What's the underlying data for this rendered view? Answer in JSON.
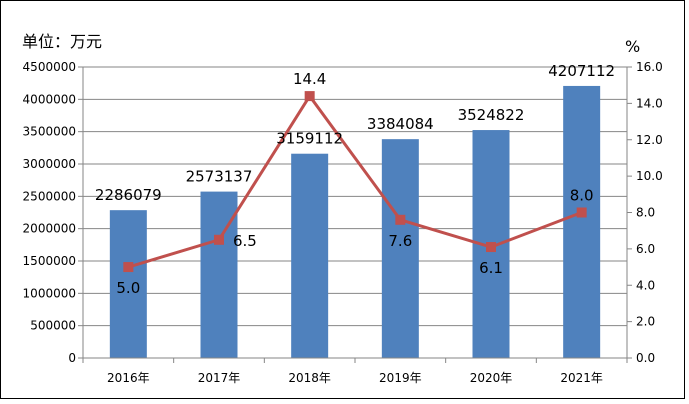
{
  "chart_data": {
    "type": "bar",
    "categories": [
      "2016年",
      "2017年",
      "2018年",
      "2019年",
      "2020年",
      "2021年"
    ],
    "series": [
      {
        "kind": "bar",
        "axis": "left",
        "values": [
          2286079,
          2573137,
          3159112,
          3384084,
          3524822,
          4207112
        ],
        "color": "#4F81BD"
      },
      {
        "kind": "line",
        "axis": "right",
        "values": [
          5.0,
          6.5,
          14.4,
          7.6,
          6.1,
          8.0
        ],
        "color": "#C0504D"
      }
    ],
    "bar_labels": [
      "2286079",
      "2573137",
      "3159112",
      "3384084",
      "3524822",
      "4207112"
    ],
    "line_labels": [
      "5.0",
      "6.5",
      "14.4",
      "7.6",
      "6.1",
      "8.0"
    ],
    "y_left": {
      "unit": "单位：万元",
      "ylim": [
        0,
        4500000
      ],
      "ticks": [
        0,
        500000,
        1000000,
        1500000,
        2000000,
        2500000,
        3000000,
        3500000,
        4000000,
        4500000
      ],
      "tick_labels": [
        "0",
        "500000",
        "1000000",
        "1500000",
        "2000000",
        "2500000",
        "3000000",
        "3500000",
        "4000000",
        "4500000"
      ]
    },
    "y_right": {
      "unit": "%",
      "ylim": [
        0,
        16
      ],
      "ticks": [
        0,
        2,
        4,
        6,
        8,
        10,
        12,
        14,
        16
      ],
      "tick_labels": [
        "0.0",
        "2.0",
        "4.0",
        "6.0",
        "8.0",
        "10.0",
        "12.0",
        "14.0",
        "16.0"
      ]
    },
    "grid": true,
    "legend": "none"
  }
}
